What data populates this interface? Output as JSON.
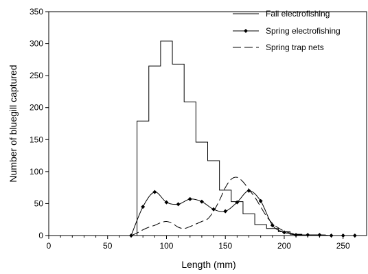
{
  "chart_data": {
    "type": "line",
    "title": "",
    "xlabel": "Length (mm)",
    "ylabel": "Number of bluegill captured",
    "xlim": [
      0,
      270
    ],
    "ylim": [
      0,
      350
    ],
    "xticks": [
      0,
      50,
      100,
      150,
      200,
      250
    ],
    "yticks": [
      0,
      50,
      100,
      150,
      200,
      250,
      300,
      350
    ],
    "grid": false,
    "legend_position": "top-right",
    "series": [
      {
        "name": "Fall electrofishing",
        "style": "step",
        "color": "#000000",
        "bins": [
          {
            "x0": 75,
            "x1": 85,
            "y": 179
          },
          {
            "x0": 85,
            "x1": 95,
            "y": 265
          },
          {
            "x0": 95,
            "x1": 105,
            "y": 304
          },
          {
            "x0": 105,
            "x1": 115,
            "y": 268
          },
          {
            "x0": 115,
            "x1": 125,
            "y": 209
          },
          {
            "x0": 125,
            "x1": 135,
            "y": 146
          },
          {
            "x0": 135,
            "x1": 145,
            "y": 117
          },
          {
            "x0": 145,
            "x1": 155,
            "y": 71
          },
          {
            "x0": 155,
            "x1": 165,
            "y": 53
          },
          {
            "x0": 165,
            "x1": 175,
            "y": 34
          },
          {
            "x0": 175,
            "x1": 185,
            "y": 17
          },
          {
            "x0": 185,
            "x1": 195,
            "y": 11
          },
          {
            "x0": 195,
            "x1": 205,
            "y": 6
          },
          {
            "x0": 205,
            "x1": 215,
            "y": 2
          },
          {
            "x0": 215,
            "x1": 235,
            "y": 1
          }
        ]
      },
      {
        "name": "Spring electrofishing",
        "style": "line-markers",
        "color": "#000000",
        "x": [
          70,
          80,
          90,
          100,
          110,
          120,
          130,
          140,
          150,
          160,
          170,
          180,
          190,
          200,
          210,
          220,
          230,
          240,
          250,
          260
        ],
        "y": [
          0,
          45,
          68,
          52,
          49,
          57,
          53,
          41,
          38,
          52,
          70,
          54,
          16,
          5,
          1,
          1,
          1,
          0,
          0,
          0
        ]
      },
      {
        "name": "Spring trap nets",
        "style": "dashed",
        "color": "#000000",
        "x": [
          70,
          75,
          80,
          85,
          90,
          95,
          100,
          105,
          110,
          115,
          120,
          125,
          130,
          135,
          140,
          145,
          150,
          155,
          160,
          165,
          170,
          175,
          180,
          185,
          190,
          195,
          200,
          205,
          210,
          215,
          220
        ],
        "y": [
          0,
          4,
          9,
          13,
          16,
          20,
          22,
          19,
          13,
          11,
          14,
          18,
          22,
          26,
          38,
          55,
          75,
          88,
          91,
          84,
          72,
          60,
          45,
          30,
          19,
          12,
          7,
          4,
          2,
          1,
          0
        ]
      }
    ]
  }
}
